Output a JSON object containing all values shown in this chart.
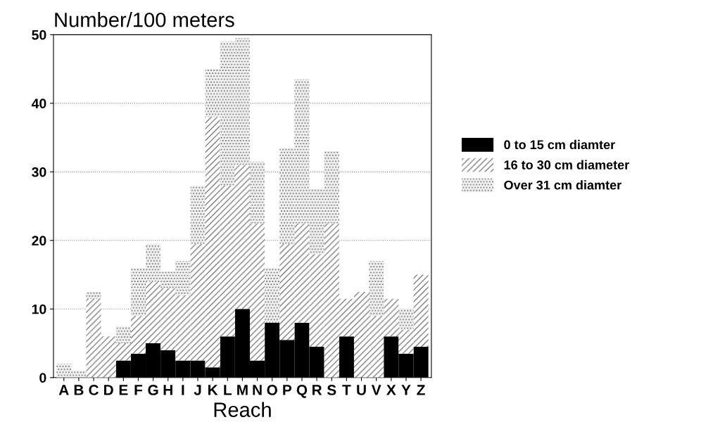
{
  "chart_data": {
    "type": "bar",
    "title": "Number/100 meters",
    "xlabel": "Reach",
    "categories": [
      "A",
      "B",
      "C",
      "D",
      "E",
      "F",
      "G",
      "H",
      "I",
      "J",
      "K",
      "L",
      "M",
      "N",
      "O",
      "P",
      "Q",
      "R",
      "S",
      "T",
      "U",
      "V",
      "X",
      "Y",
      "Z"
    ],
    "stacked": true,
    "series": [
      {
        "name": "0 to 15 cm diamter",
        "color": "#000000",
        "values": [
          0,
          0,
          0,
          0,
          2.5,
          3.5,
          5,
          4,
          2.5,
          2.5,
          1.5,
          6,
          10,
          2.5,
          8,
          5.5,
          8,
          4.5,
          0,
          6,
          0,
          0,
          6,
          3.5,
          4.5
        ]
      },
      {
        "name": "16 to 30 cm diameter",
        "color": "#ffffff",
        "values": [
          0,
          0,
          11.5,
          6,
          2.5,
          5.5,
          9,
          9,
          9.5,
          17,
          36.5,
          22,
          21,
          20,
          0,
          14,
          14.5,
          13.5,
          22.5,
          5.5,
          12.5,
          9,
          5.5,
          3.5,
          10.5
        ]
      },
      {
        "name": "Over 31 cm diamter",
        "color": "#f2f2f2",
        "values": [
          2,
          1,
          1,
          0,
          2.5,
          7,
          5.5,
          2.5,
          5,
          8.5,
          7,
          21,
          18.5,
          9,
          8,
          14,
          21,
          9.5,
          10.5,
          0,
          0,
          8,
          0,
          3,
          0
        ]
      }
    ],
    "ylim": [
      0,
      50
    ],
    "yticks": [
      0,
      10,
      20,
      30,
      40,
      50
    ],
    "grid": "y",
    "legend": "right"
  }
}
